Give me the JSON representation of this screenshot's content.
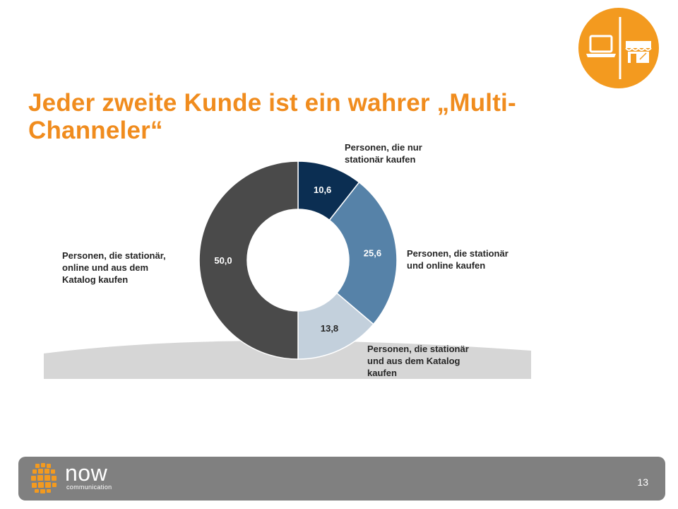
{
  "slide": {
    "title": "Jeder zweite Kunde ist ein wahrer „Multi-Channeler“",
    "page_number": "13"
  },
  "branding": {
    "logo_word": "now",
    "logo_subtext": "communication",
    "accent_color": "#f08c1e",
    "footer_color": "#808080"
  },
  "icons": {
    "badge": "laptop-and-store-icon"
  },
  "chart_data": {
    "type": "pie",
    "donut": true,
    "labels": [
      "Personen, die nur stationär kaufen",
      "Personen, die stationär und online kaufen",
      "Personen, die stationär und aus dem Katalog kaufen",
      "Personen, die stationär, online und aus dem Katalog kaufen"
    ],
    "values": [
      10.6,
      25.6,
      13.8,
      50.0
    ],
    "value_labels": [
      "10,6",
      "25,6",
      "13,8",
      "50,0"
    ],
    "colors": [
      "#0b2e52",
      "#5682a8",
      "#c3d0dc",
      "#4a4a4a"
    ],
    "label_colors": [
      "#ffffff",
      "#ffffff",
      "#262626",
      "#ffffff"
    ],
    "label_lines": [
      [
        "Personen, die nur",
        "stationär kaufen"
      ],
      [
        "Personen, die stationär",
        "und online kaufen"
      ],
      [
        "Personen, die stationär",
        "und aus dem Katalog",
        "kaufen"
      ],
      [
        "Personen, die stationär,",
        "online und aus dem",
        "Katalog kaufen"
      ]
    ]
  }
}
